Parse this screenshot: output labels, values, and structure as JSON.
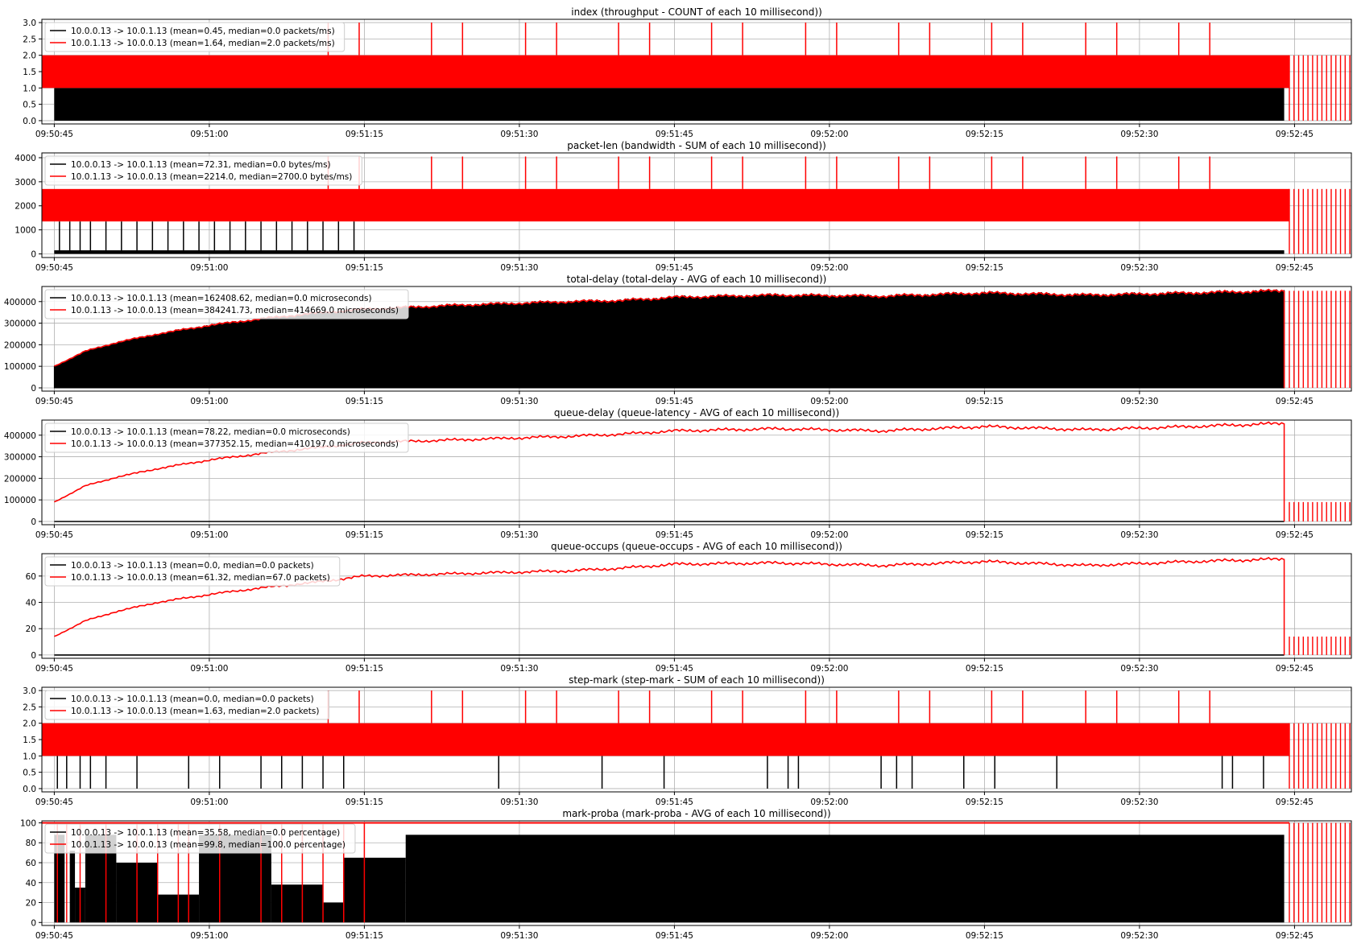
{
  "figure": {
    "x_ticks": [
      "09:50:45",
      "09:51:00",
      "09:51:15",
      "09:51:30",
      "09:51:45",
      "09:52:00",
      "09:52:15",
      "09:52:30",
      "09:52:45"
    ],
    "x_tick_seconds": [
      0,
      15,
      30,
      45,
      60,
      75,
      90,
      105,
      120
    ],
    "x_range_seconds": [
      -1.2,
      125.5
    ],
    "colors": {
      "series_a": "#000000",
      "series_b": "#ff0000",
      "grid": "#b0b0b0"
    }
  },
  "chart_data": [
    {
      "type": "area",
      "title": "index (throughput - COUNT of each 10 millisecond))",
      "ylim": [
        -0.1,
        3.1
      ],
      "yticks": [
        "0.0",
        "0.5",
        "1.0",
        "1.5",
        "2.0",
        "2.5",
        "3.0"
      ],
      "ytick_values": [
        0,
        0.5,
        1,
        1.5,
        2,
        2.5,
        3
      ],
      "grid": true,
      "legend_placement": "top-left",
      "series": [
        {
          "name": "10.0.0.13 -> 10.0.1.13 (mean=0.45, median=0.0 packets/ms)",
          "color": "#000000",
          "band": [
            0,
            1
          ],
          "x_range": [
            0,
            119
          ]
        },
        {
          "name": "10.0.1.13 -> 10.0.0.13 (mean=1.64, median=2.0 packets/ms)",
          "color": "#ff0000",
          "band": [
            1,
            2
          ],
          "x_range": [
            -1.2,
            119.5
          ],
          "spike_to": 3,
          "spike_x": [
            26.5,
            29.5,
            36.5,
            39.5,
            45.6,
            48.6,
            54.6,
            57.6,
            63.6,
            66.6,
            72.7,
            75.7,
            81.7,
            84.7,
            90.7,
            93.7,
            99.8,
            102.8,
            108.8,
            111.8
          ],
          "tail_pulses": {
            "x_range": [
              119.5,
              125.5
            ],
            "top": 2
          }
        }
      ]
    },
    {
      "type": "area",
      "title": "packet-len (bandwidth - SUM of each 10 millisecond))",
      "ylim": [
        -150,
        4200
      ],
      "yticks": [
        "0",
        "1000",
        "2000",
        "3000",
        "4000"
      ],
      "ytick_values": [
        0,
        1000,
        2000,
        3000,
        4000
      ],
      "grid": true,
      "legend_placement": "top-left",
      "series": [
        {
          "name": "10.0.0.13 -> 10.0.1.13 (mean=72.31, median=0.0 bytes/ms)",
          "color": "#000000",
          "band": [
            0,
            150
          ],
          "x_range": [
            0,
            119
          ],
          "spike_to": 1350,
          "spike_x": [
            0.5,
            1.5,
            2.5,
            3.5,
            5.0,
            6.5,
            8.0,
            9.5,
            11.0,
            12.5,
            14.0,
            15.5,
            17.0,
            18.5,
            20.0,
            21.5,
            23.0,
            24.5,
            26.0,
            27.5,
            29.0
          ]
        },
        {
          "name": "10.0.1.13 -> 10.0.0.13 (mean=2214.0, median=2700.0 bytes/ms)",
          "color": "#ff0000",
          "band": [
            1350,
            2700
          ],
          "x_range": [
            -1.2,
            119.5
          ],
          "spike_to": 4050,
          "spike_x": [
            26.5,
            29.5,
            36.5,
            39.5,
            45.6,
            48.6,
            54.6,
            57.6,
            63.6,
            66.6,
            72.7,
            75.7,
            81.7,
            84.7,
            90.7,
            93.7,
            99.8,
            102.8,
            108.8,
            111.8
          ],
          "tail_pulses": {
            "x_range": [
              119.5,
              125.5
            ],
            "top": 2700
          }
        }
      ]
    },
    {
      "type": "area",
      "title": "total-delay (total-delay - AVG of each 10 millisecond))",
      "ylim": [
        -15000,
        470000
      ],
      "yticks": [
        "0",
        "100000",
        "200000",
        "300000",
        "400000"
      ],
      "ytick_values": [
        0,
        100000,
        200000,
        300000,
        400000
      ],
      "grid": true,
      "legend_placement": "top-left",
      "x": [
        0,
        3,
        6,
        10,
        15,
        20,
        25,
        30,
        40,
        50,
        55,
        60,
        70,
        80,
        90,
        100,
        110,
        119
      ],
      "series": [
        {
          "name": "10.0.0.13 -> 10.0.1.13 (mean=162408.62, median=0.0 microseconds)",
          "color": "#000000",
          "fill": true,
          "values": [
            100000,
            170000,
            210000,
            250000,
            290000,
            320000,
            345000,
            365000,
            385000,
            400000,
            405000,
            420000,
            430000,
            425000,
            440000,
            430000,
            440000,
            450000
          ]
        },
        {
          "name": "10.0.1.13 -> 10.0.0.13 (mean=384241.73, median=414669.0 microseconds)",
          "color": "#ff0000",
          "values": [
            100000,
            170000,
            210000,
            250000,
            290000,
            320000,
            345000,
            365000,
            385000,
            400000,
            405000,
            420000,
            430000,
            425000,
            440000,
            430000,
            440000,
            450000
          ],
          "tail_pulses": {
            "x_range": [
              119.5,
              125.5
            ],
            "top": 450000
          }
        }
      ]
    },
    {
      "type": "line",
      "title": "queue-delay (queue-latency - AVG of each 10 millisecond))",
      "ylim": [
        -15000,
        470000
      ],
      "yticks": [
        "0",
        "100000",
        "200000",
        "300000",
        "400000"
      ],
      "ytick_values": [
        0,
        100000,
        200000,
        300000,
        400000
      ],
      "grid": true,
      "legend_placement": "top-left",
      "x": [
        0,
        3,
        6,
        10,
        15,
        20,
        25,
        30,
        40,
        50,
        55,
        60,
        70,
        80,
        90,
        100,
        110,
        119
      ],
      "series": [
        {
          "name": "10.0.0.13 -> 10.0.1.13 (mean=78.22, median=0.0 microseconds)",
          "color": "#000000",
          "values": [
            0,
            0,
            0,
            0,
            0,
            0,
            0,
            0,
            0,
            0,
            0,
            0,
            0,
            0,
            0,
            0,
            0,
            0
          ]
        },
        {
          "name": "10.0.1.13 -> 10.0.0.13 (mean=377352.15, median=410197.0 microseconds)",
          "color": "#ff0000",
          "values": [
            90000,
            165000,
            205000,
            245000,
            285000,
            315000,
            340000,
            365000,
            380000,
            395000,
            405000,
            420000,
            430000,
            420000,
            440000,
            425000,
            440000,
            455000
          ],
          "tail_pulses": {
            "x_range": [
              119.5,
              125.5
            ],
            "top": 90000
          }
        }
      ]
    },
    {
      "type": "line",
      "title": "queue-occups (queue-occups - AVG of each 10 millisecond))",
      "ylim": [
        -2.5,
        77
      ],
      "yticks": [
        "0",
        "20",
        "40",
        "60"
      ],
      "ytick_values": [
        0,
        20,
        40,
        60
      ],
      "grid": true,
      "legend_placement": "top-left",
      "x": [
        0,
        3,
        6,
        10,
        15,
        20,
        25,
        30,
        40,
        50,
        55,
        60,
        70,
        80,
        90,
        100,
        110,
        119
      ],
      "series": [
        {
          "name": "10.0.0.13 -> 10.0.1.13 (mean=0.0, median=0.0 packets)",
          "color": "#000000",
          "values": [
            0,
            0,
            0,
            0,
            0,
            0,
            0,
            0,
            0,
            0,
            0,
            0,
            0,
            0,
            0,
            0,
            0,
            0
          ]
        },
        {
          "name": "10.0.1.13 -> 10.0.0.13 (mean=61.32, median=67.0 packets)",
          "color": "#ff0000",
          "values": [
            14,
            26,
            33,
            40,
            46,
            51,
            55,
            60,
            62,
            64,
            66,
            69,
            70,
            68,
            71,
            68,
            71,
            73
          ],
          "tail_pulses": {
            "x_range": [
              119.5,
              125.5
            ],
            "top": 14
          }
        }
      ]
    },
    {
      "type": "area",
      "title": "step-mark (step-mark - SUM of each 10 millisecond))",
      "ylim": [
        -0.1,
        3.1
      ],
      "yticks": [
        "0.0",
        "0.5",
        "1.0",
        "1.5",
        "2.0",
        "2.5",
        "3.0"
      ],
      "ytick_values": [
        0,
        0.5,
        1,
        1.5,
        2,
        2.5,
        3
      ],
      "grid": true,
      "legend_placement": "top-left",
      "series": [
        {
          "name": "10.0.0.13 -> 10.0.1.13 (mean=0.0, median=0.0 packets)",
          "color": "#000000",
          "spike_to": 1,
          "spike_x": [
            0.3,
            1.2,
            2.5,
            3.5,
            5.0,
            8.0,
            13.0,
            16.0,
            20.0,
            22.0,
            24.0,
            26.0,
            28.0,
            43.0,
            53.0,
            59.0,
            69.0,
            71.0,
            72.0,
            80.0,
            81.5,
            83.0,
            88.0,
            91.0,
            97.0,
            113.0,
            114.0,
            117.0
          ]
        },
        {
          "name": "10.0.1.13 -> 10.0.0.13 (mean=1.63, median=2.0 packets)",
          "color": "#ff0000",
          "band": [
            1,
            2
          ],
          "x_range": [
            -1.2,
            119.5
          ],
          "spike_to": 3,
          "spike_x": [
            26.5,
            29.5,
            36.5,
            39.5,
            45.6,
            48.6,
            54.6,
            57.6,
            63.6,
            66.6,
            72.7,
            75.7,
            81.7,
            84.7,
            90.7,
            93.7,
            99.8,
            102.8,
            108.8,
            111.8
          ],
          "tail_pulses": {
            "x_range": [
              119.5,
              125.5
            ],
            "top": 2
          }
        }
      ]
    },
    {
      "type": "area",
      "title": "mark-proba (mark-proba - AVG of each 10 millisecond))",
      "ylim": [
        -3,
        102
      ],
      "yticks": [
        "0",
        "20",
        "40",
        "60",
        "80",
        "100"
      ],
      "ytick_values": [
        0,
        20,
        40,
        60,
        80,
        100
      ],
      "grid": true,
      "legend_placement": "top-left",
      "series": [
        {
          "name": "10.0.0.13 -> 10.0.1.13 (mean=35.58, median=0.0 percentage)",
          "color": "#000000",
          "steps": [
            [
              0,
              1,
              88
            ],
            [
              1,
              1.5,
              0
            ],
            [
              1.5,
              2,
              72
            ],
            [
              2,
              3,
              35
            ],
            [
              3,
              6,
              88
            ],
            [
              6,
              10,
              60
            ],
            [
              10,
              14,
              28
            ],
            [
              14,
              21,
              88
            ],
            [
              21,
              26,
              38
            ],
            [
              26,
              28,
              20
            ],
            [
              28,
              34,
              65
            ],
            [
              34,
              119,
              88
            ]
          ]
        },
        {
          "name": "10.0.1.13 -> 10.0.0.13 (mean=99.8, median=100.0 percentage)",
          "color": "#ff0000",
          "level": 100,
          "x_range": [
            -1.2,
            119.5
          ],
          "spike_to": 0,
          "spike_x": [
            0.3,
            1.2,
            2.5,
            5.0,
            8.0,
            10.0,
            12.0,
            13.0,
            16.0,
            20.0,
            22.0,
            24.0,
            26.0,
            28.0,
            30.0
          ],
          "tail_pulses": {
            "x_range": [
              119.5,
              125.5
            ],
            "top": 100
          }
        }
      ]
    }
  ]
}
